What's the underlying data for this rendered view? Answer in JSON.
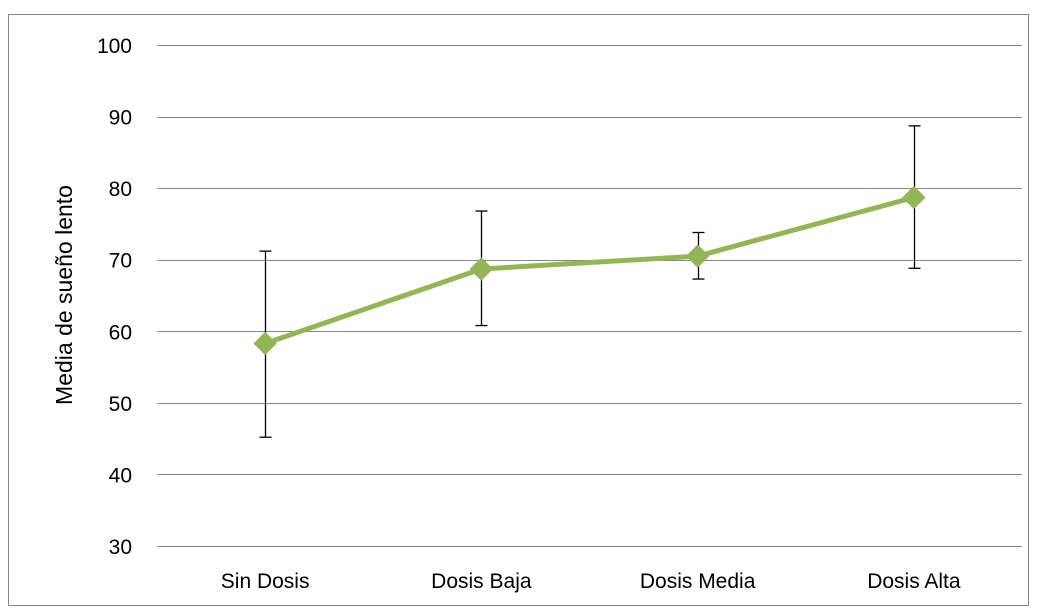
{
  "chart_data": {
    "type": "line",
    "title": "",
    "xlabel": "",
    "ylabel": "Media de sueño lento",
    "categories": [
      "Sin Dosis",
      "Dosis Baja",
      "Dosis Media",
      "Dosis Alta"
    ],
    "series": [
      {
        "values": [
          58.3,
          68.7,
          70.5,
          78.7
        ],
        "error_low": [
          45.2,
          60.8,
          67.3,
          68.8
        ],
        "error_high": [
          71.2,
          76.8,
          73.8,
          88.7
        ],
        "color": "#93b558",
        "marker": "diamond"
      }
    ],
    "ylim": [
      30,
      100
    ],
    "yticks": [
      30,
      40,
      50,
      60,
      70,
      80,
      90,
      100
    ],
    "grid": true,
    "legend": "none"
  },
  "colors": {
    "series_line": "#93b558",
    "gridline": "#868686",
    "error_bar": "#000000",
    "chart_border": "#868686"
  }
}
